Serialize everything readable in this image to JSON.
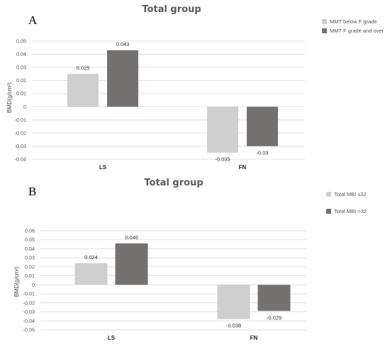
{
  "chart_data": [
    {
      "type": "bar",
      "panel": "A",
      "title": "Total group",
      "ylabel": "BMD(g/cm²)",
      "xlabel": "",
      "categories": [
        "LS",
        "FN"
      ],
      "series": [
        {
          "name": "MMT below F grade",
          "values": [
            0.025,
            -0.035
          ],
          "labels": [
            "0.025",
            "-0.035"
          ],
          "color": "#cfcfcf"
        },
        {
          "name": "MMT F grade and over",
          "values": [
            0.043,
            -0.03
          ],
          "labels": [
            "0.043",
            "-0.03"
          ],
          "color": "#767171"
        }
      ],
      "ylim": [
        -0.04,
        0.05
      ],
      "yticks": [
        "0.05",
        "0.04",
        "0.03",
        "0.02",
        "0.01",
        "0",
        "-0.01",
        "-0.02",
        "-0.03",
        "-0.04"
      ],
      "ytick_values": [
        0.05,
        0.04,
        0.03,
        0.02,
        0.01,
        0,
        -0.01,
        -0.02,
        -0.03,
        -0.04
      ],
      "legend_position": "right"
    },
    {
      "type": "bar",
      "panel": "B",
      "title": "Total group",
      "ylabel": "BMD(g/cm²)",
      "xlabel": "",
      "categories": [
        "LS",
        "FN"
      ],
      "series": [
        {
          "name": "Total MBI ≤32",
          "values": [
            0.024,
            -0.038
          ],
          "labels": [
            "0.024",
            "-0.038"
          ],
          "color": "#cfcfcf"
        },
        {
          "name": "Total MBI >32",
          "values": [
            0.046,
            -0.029
          ],
          "labels": [
            "0.046",
            "-0.029"
          ],
          "color": "#767171"
        }
      ],
      "ylim": [
        -0.05,
        0.06
      ],
      "yticks": [
        "0.06",
        "0.05",
        "0.04",
        "0.03",
        "0.02",
        "0.01",
        "0",
        "-0.01",
        "-0.02",
        "-0.03",
        "-0.04",
        "-0.05"
      ],
      "ytick_values": [
        0.06,
        0.05,
        0.04,
        0.03,
        0.02,
        0.01,
        0,
        -0.01,
        -0.02,
        -0.03,
        -0.04,
        -0.05
      ],
      "legend_position": "right"
    }
  ]
}
